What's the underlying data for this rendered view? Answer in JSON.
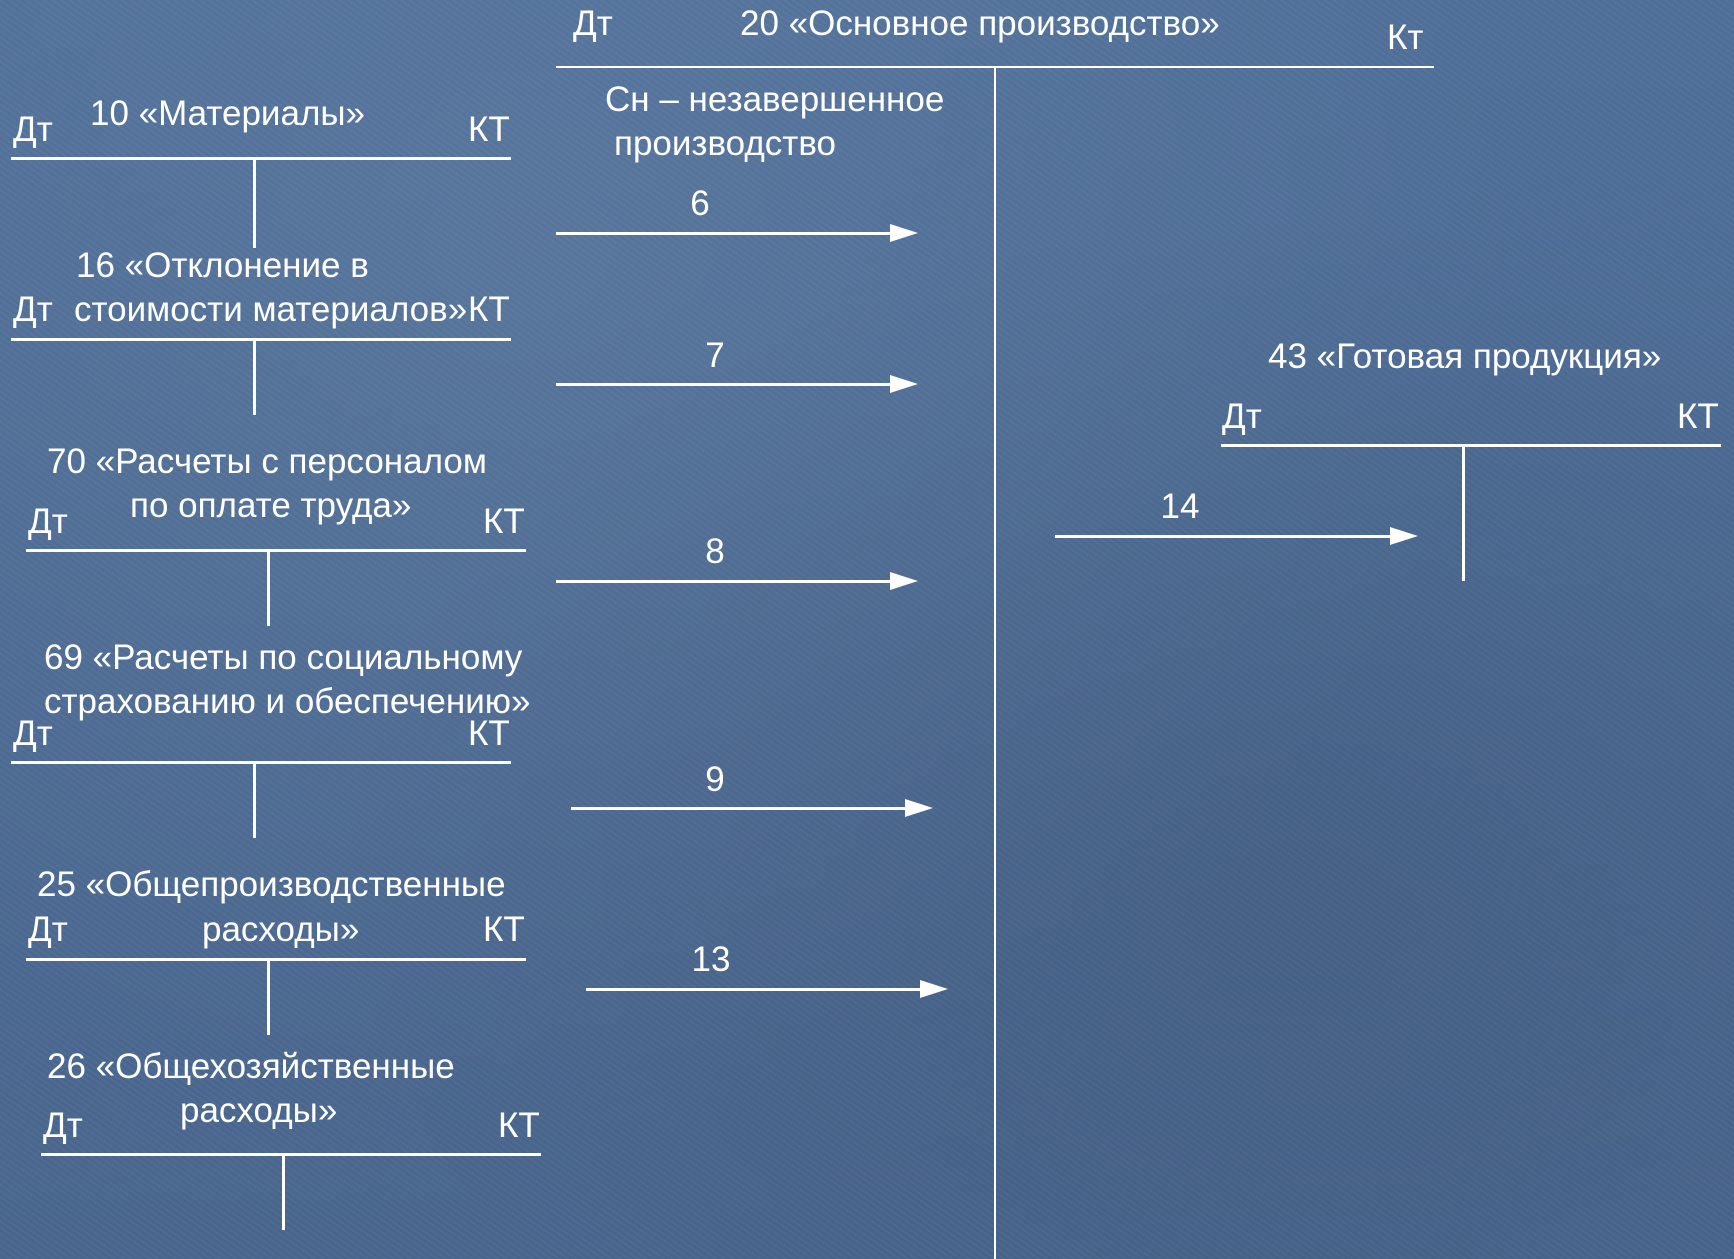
{
  "main_account": {
    "dt": "Дт",
    "title": "20 «Основное производство»",
    "kt": "Кт",
    "opening_balance_line1": "Сн – незавершенное",
    "opening_balance_line2": "производство"
  },
  "accounts": [
    {
      "line1": "10 «Материалы»",
      "line2": "",
      "dt": "Дт",
      "kt": "КТ"
    },
    {
      "line1": "16 «Отклонение в",
      "line2": "стоимости материалов»",
      "dt": "Дт",
      "kt": "КТ"
    },
    {
      "line1": "70 «Расчеты с персоналом",
      "line2": "по оплате труда»",
      "dt": "Дт",
      "kt": "КТ"
    },
    {
      "line1": "69 «Расчеты по социальному",
      "line2": "страхованию и обеспечению»",
      "dt": "Дт",
      "kt": "КТ"
    },
    {
      "line1": "25 «Общепроизводственные",
      "line2": "расходы»",
      "dt": "Дт",
      "kt": "КТ"
    },
    {
      "line1": "26 «Общехозяйственные",
      "line2": "расходы»",
      "dt": "Дт",
      "kt": "КТ"
    }
  ],
  "finished_goods": {
    "title": "43 «Готовая продукция»",
    "dt": "Дт",
    "kt": "КТ"
  },
  "arrows": [
    {
      "label": "6"
    },
    {
      "label": "7"
    },
    {
      "label": "8"
    },
    {
      "label": "9"
    },
    {
      "label": "13"
    },
    {
      "label": "14"
    }
  ]
}
